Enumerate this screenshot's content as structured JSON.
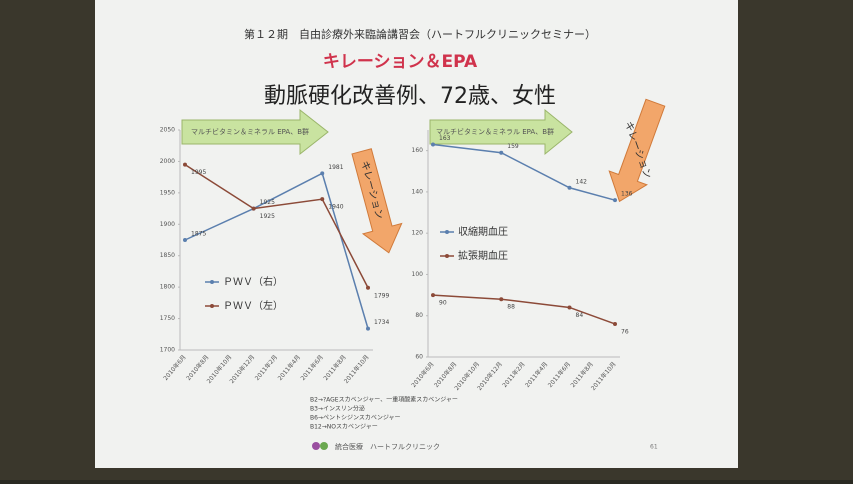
{
  "header": "第１２期　自由診療外来臨論講習会（ハートフルクリニックセミナー）",
  "title": "キレーション＆EPA",
  "subtitle": "動脈硬化改善例、72歳、女性",
  "arrows": {
    "supplement": "マルチビタミン＆ミネラル EPA、B群",
    "chelation": "キレーション"
  },
  "notes": [
    "B2→?AGEスカベンジャー、一重項酸素スカベンジャー",
    "B3→インスリン分泌",
    "B6→ペントシジンスカベンジャー",
    "B12→NOスカベンジャー"
  ],
  "footer": "統合医療　ハートフルクリニック",
  "page_number": "61",
  "chart_data": [
    {
      "type": "line",
      "connect_gaps": true,
      "categories": [
        "2010年6月",
        "2010年8月",
        "2010年10月",
        "2010年12月",
        "2011年2月",
        "2011年4月",
        "2011年6月",
        "2011年8月",
        "2011年10月"
      ],
      "series": [
        {
          "name": "ＰＷＶ（右）",
          "color": "#5b7fae",
          "values": [
            1875,
            null,
            null,
            1925,
            null,
            null,
            1981,
            null,
            1734
          ]
        },
        {
          "name": "ＰＷＶ（左）",
          "color": "#8c4a38",
          "values": [
            1995,
            null,
            null,
            1925,
            null,
            null,
            1940,
            null,
            1799
          ]
        }
      ],
      "ylim": [
        1700,
        2050
      ],
      "yticks": [
        1700,
        1750,
        1800,
        1850,
        1900,
        1950,
        2000,
        2050
      ],
      "grid": false
    },
    {
      "type": "line",
      "connect_gaps": true,
      "categories": [
        "2010年6月",
        "2010年8月",
        "2010年10月",
        "2010年12月",
        "2011年2月",
        "2011年4月",
        "2011年6月",
        "2011年8月",
        "2011年10月"
      ],
      "series": [
        {
          "name": "収縮期血圧",
          "color": "#5b7fae",
          "values": [
            163,
            null,
            null,
            159,
            null,
            null,
            142,
            null,
            136
          ]
        },
        {
          "name": "拡張期血圧",
          "color": "#8c4a38",
          "values": [
            90,
            null,
            null,
            88,
            null,
            null,
            84,
            null,
            76
          ]
        }
      ],
      "ylim": [
        60,
        170
      ],
      "yticks": [
        60,
        80,
        100,
        120,
        140,
        160
      ],
      "grid": false
    }
  ]
}
